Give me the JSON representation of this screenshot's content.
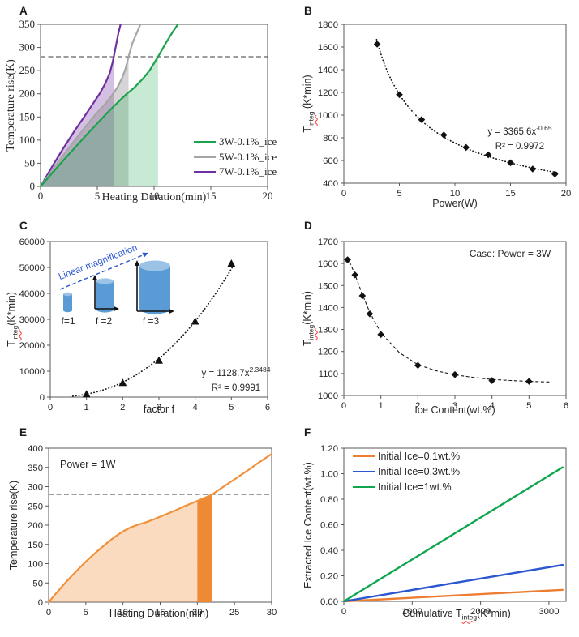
{
  "panels": {
    "A": {
      "label": "A",
      "chart_data": {
        "type": "line",
        "xlabel": "Heating Duration(min)",
        "ylabel": "Temperature rise(K)",
        "xlim": [
          0,
          20
        ],
        "ylim": [
          0,
          350
        ],
        "xticks": [
          0,
          5,
          10,
          15,
          20
        ],
        "yticks": [
          0,
          50,
          100,
          150,
          200,
          250,
          300,
          350
        ],
        "threshold_y": 280,
        "legend_position": "lower right",
        "series": [
          {
            "name": "3W-0.1%_ice",
            "color": "#1aa34c",
            "fill_color": "rgba(26,163,76,0.24)",
            "fill_to_x": 10.35,
            "points": [
              [
                0,
                0
              ],
              [
                1,
                28
              ],
              [
                2,
                56
              ],
              [
                3,
                83
              ],
              [
                4,
                110
              ],
              [
                5,
                136
              ],
              [
                6,
                162
              ],
              [
                7,
                186
              ],
              [
                7.6,
                200
              ],
              [
                8.2,
                212
              ],
              [
                9,
                232
              ],
              [
                9.6,
                250
              ],
              [
                10,
                266
              ],
              [
                10.35,
                280
              ],
              [
                10.7,
                295
              ],
              [
                11.1,
                312
              ],
              [
                11.6,
                332
              ],
              [
                12.1,
                350
              ]
            ]
          },
          {
            "name": "5W-0.1%_ice",
            "color": "#a6a6a6",
            "fill_color": "rgba(128,128,128,0.33)",
            "fill_to_x": 7.75,
            "points": [
              [
                0,
                0
              ],
              [
                1,
                34
              ],
              [
                2,
                67
              ],
              [
                3,
                99
              ],
              [
                4,
                130
              ],
              [
                5,
                160
              ],
              [
                5.7,
                178
              ],
              [
                6.3,
                197
              ],
              [
                6.8,
                215
              ],
              [
                7.2,
                235
              ],
              [
                7.5,
                255
              ],
              [
                7.75,
                280
              ],
              [
                8.1,
                310
              ],
              [
                8.45,
                330
              ],
              [
                8.8,
                350
              ]
            ]
          },
          {
            "name": "7W-0.1%_ice",
            "color": "#7030a0",
            "fill_color": "rgba(112,48,160,0.30)",
            "fill_to_x": 6.45,
            "points": [
              [
                0,
                0
              ],
              [
                1,
                42
              ],
              [
                2,
                82
              ],
              [
                3,
                120
              ],
              [
                4,
                156
              ],
              [
                4.6,
                178
              ],
              [
                5.2,
                200
              ],
              [
                5.7,
                222
              ],
              [
                6.1,
                245
              ],
              [
                6.35,
                268
              ],
              [
                6.45,
                280
              ],
              [
                6.65,
                305
              ],
              [
                6.85,
                330
              ],
              [
                7.05,
                350
              ]
            ]
          }
        ]
      }
    },
    "B": {
      "label": "B",
      "chart_data": {
        "type": "scatter",
        "xlabel": "Power(W)",
        "ylabel_parts": [
          {
            "t": "T"
          },
          {
            "t": "integ",
            "sub": true,
            "wavy": true
          },
          {
            "t": " (K*min)"
          }
        ],
        "xlim": [
          0,
          20
        ],
        "ylim": [
          400,
          1800
        ],
        "xticks": [
          0,
          5,
          10,
          15,
          20
        ],
        "yticks": [
          400,
          600,
          800,
          1000,
          1200,
          1400,
          1600,
          1800
        ],
        "marker": "diamond",
        "x": [
          3,
          5,
          7,
          9,
          11,
          13,
          15,
          17,
          19
        ],
        "y": [
          1625,
          1180,
          960,
          825,
          715,
          650,
          580,
          525,
          480
        ],
        "fit": {
          "type": "power",
          "a": 3365.6,
          "b": -0.65,
          "x_range": [
            2.95,
            19.35
          ]
        },
        "equation_lines": [
          [
            {
              "t": "y = 3365.6x"
            },
            {
              "t": "-0.65",
              "sup": true
            }
          ],
          [
            {
              "t": "R² = 0.9972"
            }
          ]
        ]
      }
    },
    "C": {
      "label": "C",
      "chart_data": {
        "type": "scatter",
        "xlabel": "factor f",
        "ylabel_parts": [
          {
            "t": "T"
          },
          {
            "t": "integ",
            "sub": true,
            "wavy": true
          },
          {
            "t": "(K*min)"
          }
        ],
        "xlim": [
          0,
          6
        ],
        "ylim": [
          0,
          60000
        ],
        "xticks": [
          0,
          1,
          2,
          3,
          4,
          5,
          6
        ],
        "yticks": [
          0,
          10000,
          20000,
          30000,
          40000,
          50000,
          60000
        ],
        "marker": "triangle",
        "x": [
          1,
          2,
          3,
          4,
          5
        ],
        "y": [
          1100,
          5500,
          14100,
          29200,
          51500
        ],
        "fit": {
          "type": "power",
          "a": 1128.7,
          "b": 2.3484,
          "x_range": [
            0.62,
            5.08
          ]
        },
        "equation_lines": [
          [
            {
              "t": "y = 1128.7x"
            },
            {
              "t": "2.3484",
              "sup": true
            }
          ],
          [
            {
              "t": "R² = 0.9991"
            }
          ]
        ],
        "inset": {
          "arrow_label": "Linear magnification",
          "f_labels": [
            "f=1",
            "f =2",
            "f =3"
          ],
          "cylinder_color": "#5b9bd5",
          "cylinder_top_color": "#9cc3e5",
          "arrow_color": "#2a56d0"
        }
      }
    },
    "D": {
      "label": "D",
      "chart_data": {
        "type": "scatter",
        "xlabel": "Ice Content(wt.%)",
        "ylabel_parts": [
          {
            "t": "T"
          },
          {
            "t": "integ",
            "sub": true,
            "wavy": true
          },
          {
            "t": "(K*min)"
          }
        ],
        "annotation": "Case: Power = 3W",
        "xlim": [
          0,
          6
        ],
        "ylim": [
          1000,
          1700
        ],
        "xticks": [
          0,
          1,
          2,
          3,
          4,
          5,
          6
        ],
        "yticks": [
          1000,
          1100,
          1200,
          1300,
          1400,
          1500,
          1600,
          1700
        ],
        "marker": "diamond",
        "x": [
          0.1,
          0.3,
          0.5,
          0.7,
          1,
          2,
          3,
          4,
          5
        ],
        "y": [
          1617,
          1548,
          1453,
          1371,
          1277,
          1137,
          1095,
          1068,
          1064
        ],
        "fit_points": [
          [
            0.1,
            1630
          ],
          [
            0.3,
            1550
          ],
          [
            0.5,
            1460
          ],
          [
            0.7,
            1378
          ],
          [
            1,
            1285
          ],
          [
            1.5,
            1195
          ],
          [
            2,
            1140
          ],
          [
            2.5,
            1112
          ],
          [
            3,
            1094
          ],
          [
            3.5,
            1082
          ],
          [
            4,
            1073
          ],
          [
            4.5,
            1068
          ],
          [
            5,
            1064
          ],
          [
            5.6,
            1061
          ]
        ]
      }
    },
    "E": {
      "label": "E",
      "chart_data": {
        "type": "area",
        "xlabel": "Heating Duration(min)",
        "ylabel": "Temperature rise(K)",
        "annotation": "Power = 1W",
        "xlim": [
          0,
          30
        ],
        "ylim": [
          0,
          400
        ],
        "xticks": [
          0,
          5,
          10,
          15,
          20,
          25,
          30
        ],
        "yticks": [
          0,
          50,
          100,
          150,
          200,
          250,
          300,
          350,
          400
        ],
        "threshold_y": 280,
        "line_color": "#f0913c",
        "fill_light_color": "rgba(240,145,60,0.33)",
        "fill_dark_color": "#ed8a33",
        "fill_light_to_x": 20,
        "fill_dark_x_range": [
          20,
          22
        ],
        "points": [
          [
            0,
            0
          ],
          [
            1,
            23
          ],
          [
            2,
            45
          ],
          [
            3,
            66
          ],
          [
            4,
            86
          ],
          [
            5,
            105
          ],
          [
            6,
            123
          ],
          [
            7,
            140
          ],
          [
            8,
            156
          ],
          [
            9,
            171
          ],
          [
            10,
            184
          ],
          [
            11,
            194
          ],
          [
            12,
            201
          ],
          [
            13,
            207
          ],
          [
            14,
            214
          ],
          [
            15,
            222
          ],
          [
            16,
            230
          ],
          [
            17,
            238
          ],
          [
            18,
            247
          ],
          [
            19,
            255
          ],
          [
            20,
            263
          ],
          [
            21,
            271
          ],
          [
            22,
            280
          ],
          [
            23,
            293
          ],
          [
            24,
            306
          ],
          [
            25,
            319
          ],
          [
            26,
            332
          ],
          [
            27,
            345
          ],
          [
            28,
            359
          ],
          [
            29,
            372
          ],
          [
            30,
            385
          ]
        ]
      }
    },
    "F": {
      "label": "F",
      "chart_data": {
        "type": "line",
        "xlabel_parts": [
          {
            "t": "Cumulative T"
          },
          {
            "t": "integ",
            "sub": true,
            "wavy": true
          },
          {
            "t": "(K*min)"
          }
        ],
        "ylabel": "Extracted Ice Content(wt.%)",
        "xlim": [
          0,
          3250
        ],
        "ylim": [
          0,
          1.2
        ],
        "xticks": [
          0,
          1000,
          2000,
          3000
        ],
        "yticks": [
          0,
          0.2,
          0.4,
          0.6,
          0.8,
          1.0,
          1.2
        ],
        "ytick_labels": [
          "0.00",
          "0.20",
          "0.40",
          "0.60",
          "0.80",
          "1.00",
          "1.20"
        ],
        "legend_position": "upper left",
        "series": [
          {
            "name": "Initial Ice=0.1wt.%",
            "color": "#ed7d31",
            "points": [
              [
                0,
                0
              ],
              [
                3200,
                0.09
              ]
            ]
          },
          {
            "name": "Initial Ice=0.3wt.%",
            "color": "#2a56d0",
            "points": [
              [
                0,
                0
              ],
              [
                3200,
                0.285
              ]
            ]
          },
          {
            "name": "Initial Ice=1wt.%",
            "color": "#10a64f",
            "points": [
              [
                0,
                0
              ],
              [
                3200,
                1.05
              ]
            ]
          }
        ]
      }
    }
  }
}
